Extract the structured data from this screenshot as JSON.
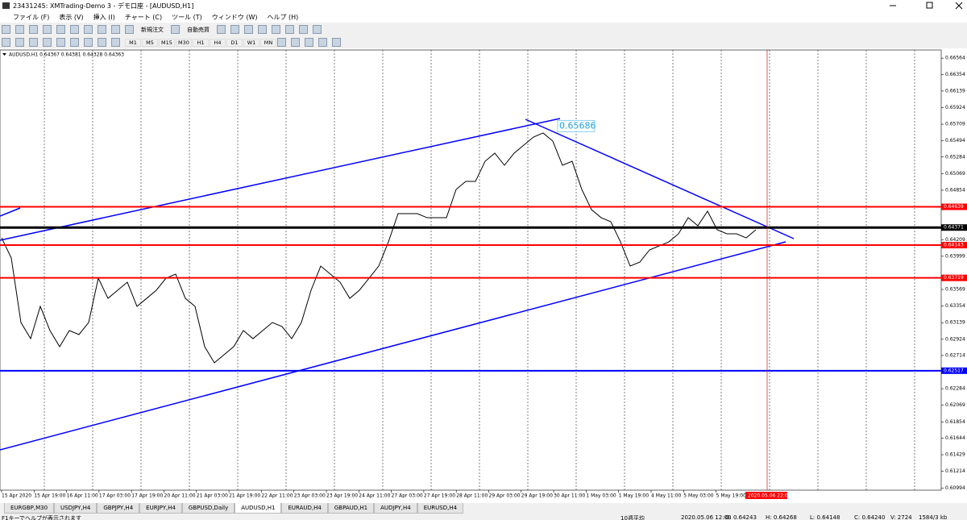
{
  "window": {
    "title": "23431245: XMTrading-Demo 3 - デモ口座 - [AUDUSD,H1]"
  },
  "menu": [
    "ファイル (F)",
    "表示 (V)",
    "挿入 (I)",
    "チャート (C)",
    "ツール (T)",
    "ウィンドウ (W)",
    "ヘルプ (H)"
  ],
  "toolbar": {
    "buttons": [
      "新規注文",
      "自動売買"
    ],
    "timeframes": [
      "M1",
      "M5",
      "M15",
      "M30",
      "H1",
      "H4",
      "D1",
      "W1",
      "MN"
    ]
  },
  "chart_data": {
    "type": "line",
    "info": "AUDUSD,H1  0.64367 0.64381 0.64328 0.64363",
    "annotation": {
      "value": 0.65686
    },
    "values": [
      0.64237,
      0.63976,
      0.63141,
      0.62932,
      0.6335,
      0.63037,
      0.62828,
      0.63037,
      0.62985,
      0.63141,
      0.63715,
      0.63454,
      0.63559,
      0.63663,
      0.6335,
      0.63454,
      0.63559,
      0.63715,
      0.63768,
      0.63454,
      0.6335,
      0.62828,
      0.62619,
      0.62724,
      0.62828,
      0.63037,
      0.62932,
      0.63037,
      0.63141,
      0.63089,
      0.62932,
      0.63141,
      0.63559,
      0.63872,
      0.63768,
      0.63663,
      0.63454,
      0.63559,
      0.63715,
      0.63872,
      0.64185,
      0.64551,
      0.64551,
      0.64551,
      0.64498,
      0.64498,
      0.64498,
      0.64864,
      0.64968,
      0.64968,
      0.65229,
      0.65334,
      0.65177,
      0.65334,
      0.65438,
      0.65542,
      0.65595,
      0.6549,
      0.65177,
      0.65229,
      0.64864,
      0.64603,
      0.64498,
      0.64446,
      0.64185,
      0.63872,
      0.63924,
      0.64081,
      0.64133,
      0.64185,
      0.6429,
      0.64498,
      0.64394,
      0.64582,
      0.64342,
      0.6429,
      0.6429,
      0.64237,
      0.64342
    ],
    "color": "#000000",
    "levels": [
      {
        "value": 0.64639,
        "color": "#ff0000"
      },
      {
        "value": 0.64371,
        "color": "#000000"
      },
      {
        "value": 0.64143,
        "color": "#ff0000"
      },
      {
        "value": 0.63719,
        "color": "#ff0000"
      },
      {
        "value": 0.62517,
        "color": "#0000ff"
      }
    ],
    "ylim": [
      0.6097,
      0.6667
    ],
    "yticks": [
      0.66564,
      0.66354,
      0.66139,
      0.65924,
      0.65709,
      0.65494,
      0.65284,
      0.65069,
      0.64854,
      0.64209,
      0.63999,
      0.63569,
      0.63354,
      0.63139,
      0.62924,
      0.62714,
      0.62284,
      0.62069,
      0.61854,
      0.61644,
      0.61429,
      0.61214,
      0.60994
    ],
    "x_labels": [
      "15 Apr 2020",
      "15 Apr 19:00",
      "16 Apr 11:00",
      "17 Apr 03:00",
      "17 Apr 19:00",
      "20 Apr 11:00",
      "21 Apr 03:00",
      "21 Apr 19:00",
      "22 Apr 11:00",
      "23 Apr 03:00",
      "23 Apr 19:00",
      "24 Apr 11:00",
      "27 Apr 03:00",
      "27 Apr 19:00",
      "28 Apr 11:00",
      "29 Apr 03:00",
      "29 Apr 19:00",
      "30 Apr 11:00",
      "1 May 03:00",
      "1 May 19:00",
      "4 May 11:00",
      "5 May 03:00",
      "5 May 19:00"
    ],
    "date_label": "2020.05.06 22:00",
    "grid": true
  },
  "tabs": {
    "items": [
      "EURGBP,M30",
      "USDJPY,H4",
      "GBPJPY,H4",
      "EURJPY,H4",
      "GBPUSD,Daily",
      "AUDUSD,H1",
      "EURAUD,H4",
      "GBPAUD,H1",
      "AUDJPY,H4",
      "EURUSD,H4"
    ],
    "active": 5
  },
  "status": [
    "F1キーでヘルプが表示されます",
    "10週平均",
    "2020.05.06 12:00",
    "O: 0.64243",
    "H: 0.64268",
    "L: 0.64148",
    "C: 0.64240",
    "V: 2724",
    "1584/3 kb"
  ]
}
